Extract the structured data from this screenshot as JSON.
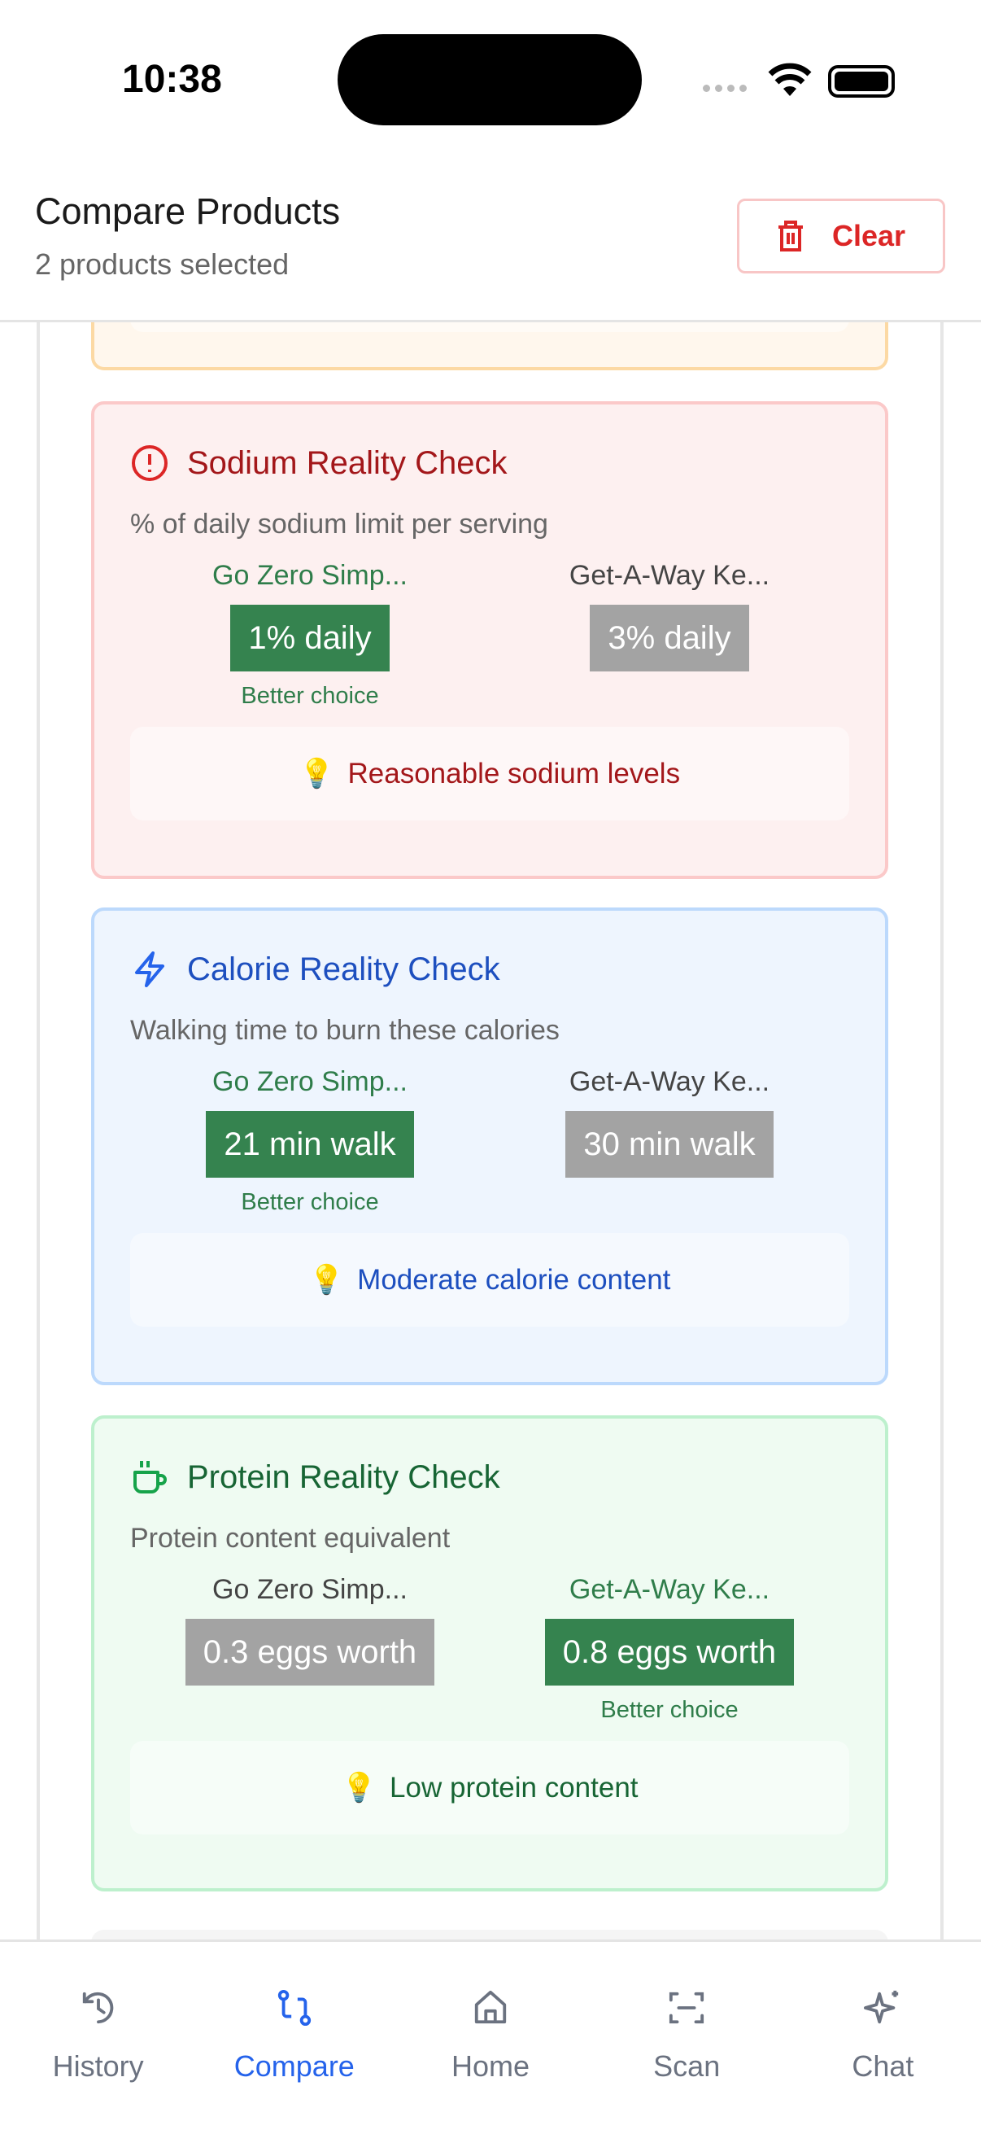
{
  "status_bar": {
    "time": "10:38"
  },
  "header": {
    "title": "Compare Products",
    "subtitle": "2 products selected",
    "clear_label": "Clear"
  },
  "cards": [
    {
      "title": "Sodium Reality Check",
      "subtitle": "% of daily sodium limit per serving",
      "icon": "alert-circle-icon",
      "products": [
        {
          "name": "Go Zero Simp...",
          "value": "1% daily",
          "better": true
        },
        {
          "name": "Get-A-Way Ke...",
          "value": "3% daily",
          "better": false
        }
      ],
      "better_label": "Better choice",
      "tip": "Reasonable sodium levels"
    },
    {
      "title": "Calorie Reality Check",
      "subtitle": "Walking time to burn these calories",
      "icon": "lightning-icon",
      "products": [
        {
          "name": "Go Zero Simp...",
          "value": "21 min walk",
          "better": true
        },
        {
          "name": "Get-A-Way Ke...",
          "value": "30 min walk",
          "better": false
        }
      ],
      "better_label": "Better choice",
      "tip": "Moderate calorie content"
    },
    {
      "title": "Protein Reality Check",
      "subtitle": "Protein content equivalent",
      "icon": "coffee-cup-icon",
      "products": [
        {
          "name": "Go Zero Simp...",
          "value": "0.3 eggs worth",
          "better": false
        },
        {
          "name": "Get-A-Way Ke...",
          "value": "0.8 eggs worth",
          "better": true
        }
      ],
      "better_label": "Better choice",
      "tip": "Low protein content"
    }
  ],
  "nav": {
    "items": [
      {
        "label": "History"
      },
      {
        "label": "Compare",
        "active": true
      },
      {
        "label": "Home"
      },
      {
        "label": "Scan"
      },
      {
        "label": "Chat"
      }
    ]
  },
  "colors": {
    "accent": "#2563eb",
    "better": "#35834f",
    "danger": "#dc2626"
  }
}
